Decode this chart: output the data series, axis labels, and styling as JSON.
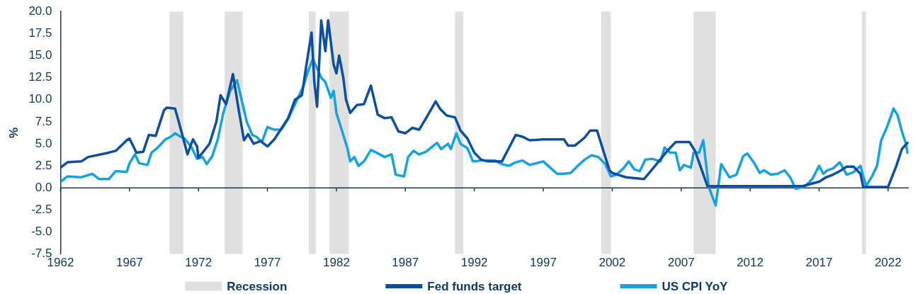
{
  "chart_data": {
    "type": "line",
    "ylabel": "%",
    "xlim": [
      1962,
      2023.5
    ],
    "xticks": [
      1962,
      1967,
      1972,
      1977,
      1982,
      1987,
      1992,
      1997,
      2002,
      2007,
      2012,
      2017,
      2022
    ],
    "ylim": [
      -7.5,
      20
    ],
    "yticks": [
      {
        "value": -7.5,
        "label": "-7.5"
      },
      {
        "value": -5,
        "label": "-5.0"
      },
      {
        "value": -2.5,
        "label": "-2.5"
      },
      {
        "value": 0,
        "label": "0.0"
      },
      {
        "value": 2.5,
        "label": "2.5"
      },
      {
        "value": 5,
        "label": "5.0"
      },
      {
        "value": 7.5,
        "label": "7.5"
      },
      {
        "value": 10,
        "label": "10.0"
      },
      {
        "value": 12.5,
        "label": "12.5"
      },
      {
        "value": 15,
        "label": "15.0"
      },
      {
        "value": 17.5,
        "label": "17.5"
      },
      {
        "value": 20,
        "label": "20.0"
      }
    ],
    "grid": false,
    "legend": "bottom",
    "line_style": "solid",
    "marker": "none",
    "bands": [
      {
        "axis": "x",
        "from": 1969.9,
        "to": 1970.9,
        "label": "Recession",
        "color": "#e0e0e0"
      },
      {
        "axis": "x",
        "from": 1973.9,
        "to": 1975.2,
        "color": "#e0e0e0"
      },
      {
        "axis": "x",
        "from": 1980.0,
        "to": 1980.5,
        "color": "#e0e0e0"
      },
      {
        "axis": "x",
        "from": 1981.5,
        "to": 1982.9,
        "color": "#e0e0e0"
      },
      {
        "axis": "x",
        "from": 1990.6,
        "to": 1991.2,
        "color": "#e0e0e0"
      },
      {
        "axis": "x",
        "from": 2001.2,
        "to": 2001.9,
        "color": "#e0e0e0"
      },
      {
        "axis": "x",
        "from": 2007.9,
        "to": 2009.5,
        "color": "#e0e0e0"
      },
      {
        "axis": "x",
        "from": 2020.1,
        "to": 2020.4,
        "color": "#e0e0e0"
      }
    ],
    "series": [
      {
        "name": "Fed funds target",
        "color": "#0b4ea2",
        "x": [
          1962.0,
          1962.5,
          1963.5,
          1964.0,
          1965.5,
          1966.0,
          1966.8,
          1967.0,
          1967.5,
          1968.0,
          1968.4,
          1968.9,
          1969.5,
          1969.7,
          1970.3,
          1970.5,
          1971.0,
          1971.2,
          1971.6,
          1971.9,
          1972.0,
          1972.8,
          1973.3,
          1973.6,
          1974.0,
          1974.5,
          1974.9,
          1975.3,
          1975.6,
          1976.0,
          1976.5,
          1977.0,
          1977.5,
          1978.0,
          1978.5,
          1979.0,
          1979.5,
          1979.8,
          1980.2,
          1980.4,
          1980.6,
          1980.9,
          1981.2,
          1981.4,
          1981.8,
          1982.0,
          1982.2,
          1982.5,
          1982.7,
          1983.0,
          1983.5,
          1984.0,
          1984.5,
          1985.0,
          1985.5,
          1986.0,
          1986.5,
          1987.0,
          1987.5,
          1988.0,
          1988.5,
          1989.2,
          1989.5,
          1990.0,
          1990.6,
          1991.0,
          1991.5,
          1992.0,
          1992.5,
          1993.0,
          1994.0,
          1994.5,
          1995.0,
          1995.5,
          1996.0,
          1997.0,
          1998.5,
          1998.8,
          1999.3,
          2000.0,
          2000.4,
          2000.9,
          2001.3,
          2001.8,
          2002.0,
          2003.0,
          2004.3,
          2005.0,
          2006.0,
          2006.6,
          2007.6,
          2008.0,
          2008.5,
          2008.9,
          2015.8,
          2016.5,
          2017.0,
          2017.5,
          2018.0,
          2018.5,
          2019.0,
          2019.5,
          2020.0,
          2020.2,
          2022.0,
          2022.6,
          2023.0,
          2023.4
        ],
        "values": [
          2.3,
          2.9,
          3.0,
          3.5,
          4.0,
          4.2,
          5.4,
          5.6,
          4.0,
          4.1,
          6.0,
          5.9,
          8.8,
          9.1,
          9.0,
          7.9,
          5.0,
          3.8,
          5.5,
          4.7,
          3.4,
          5.0,
          7.5,
          10.5,
          9.5,
          12.9,
          9.0,
          5.4,
          6.1,
          5.0,
          5.3,
          4.7,
          5.5,
          6.7,
          7.9,
          10.0,
          10.5,
          13.7,
          17.6,
          12.0,
          9.2,
          19.0,
          15.5,
          19.0,
          14.0,
          13.0,
          15.0,
          12.5,
          10.0,
          8.5,
          9.4,
          9.5,
          11.6,
          8.3,
          7.9,
          8.0,
          6.4,
          6.2,
          6.8,
          6.6,
          7.9,
          9.8,
          9.0,
          8.2,
          8.0,
          6.5,
          5.6,
          4.0,
          3.2,
          3.0,
          3.0,
          4.5,
          6.0,
          5.8,
          5.4,
          5.5,
          5.5,
          4.8,
          4.8,
          5.7,
          6.5,
          6.5,
          4.5,
          2.0,
          1.7,
          1.2,
          1.0,
          2.3,
          4.2,
          5.2,
          5.2,
          4.2,
          2.0,
          0.2,
          0.2,
          0.5,
          0.7,
          1.2,
          1.5,
          1.9,
          2.4,
          2.4,
          1.6,
          0.1,
          0.1,
          2.5,
          4.4,
          5.1
        ]
      },
      {
        "name": "US CPI YoY",
        "color": "#14a3e0",
        "x": [
          1962.0,
          1962.5,
          1963.5,
          1964.3,
          1964.8,
          1965.5,
          1966.0,
          1966.8,
          1967.0,
          1967.4,
          1967.7,
          1968.3,
          1968.6,
          1969.0,
          1969.6,
          1970.0,
          1970.3,
          1970.7,
          1971.0,
          1971.5,
          1971.9,
          1972.3,
          1972.6,
          1973.0,
          1973.4,
          1973.8,
          1974.3,
          1974.8,
          1975.2,
          1975.5,
          1975.9,
          1976.2,
          1976.6,
          1977.0,
          1977.5,
          1978.0,
          1978.5,
          1979.0,
          1979.6,
          1980.0,
          1980.3,
          1980.9,
          1981.2,
          1981.6,
          1981.8,
          1982.0,
          1982.4,
          1982.8,
          1983.0,
          1983.3,
          1983.6,
          1984.0,
          1984.5,
          1984.9,
          1985.5,
          1986.0,
          1986.3,
          1986.9,
          1987.2,
          1987.6,
          1988.0,
          1988.5,
          1989.3,
          1989.6,
          1990.1,
          1990.3,
          1990.7,
          1991.0,
          1991.5,
          1991.9,
          1992.5,
          1993.5,
          1994.0,
          1994.5,
          1995.0,
          1995.5,
          1996.0,
          1997.0,
          1997.5,
          1998.0,
          1998.5,
          1999.0,
          1999.5,
          2000.0,
          2000.5,
          2001.0,
          2001.5,
          2001.9,
          2002.3,
          2002.8,
          2003.2,
          2003.6,
          2004.0,
          2004.4,
          2004.9,
          2005.5,
          2005.8,
          2006.2,
          2006.6,
          2006.9,
          2007.2,
          2007.7,
          2007.9,
          2008.3,
          2008.6,
          2009.0,
          2009.5,
          2009.9,
          2010.5,
          2011.0,
          2011.5,
          2011.8,
          2012.3,
          2012.7,
          2013.0,
          2013.5,
          2014.0,
          2014.5,
          2014.9,
          2015.3,
          2016.0,
          2016.5,
          2017.0,
          2017.3,
          2017.6,
          2018.0,
          2018.5,
          2019.0,
          2019.5,
          2020.0,
          2020.4,
          2020.8,
          2021.2,
          2021.5,
          2021.9,
          2022.4,
          2022.7,
          2023.0,
          2023.3,
          2023.4
        ],
        "values": [
          0.7,
          1.3,
          1.2,
          1.6,
          1.0,
          1.0,
          1.9,
          1.8,
          2.8,
          3.8,
          2.8,
          2.6,
          4.0,
          4.5,
          5.5,
          5.8,
          6.2,
          5.8,
          5.6,
          4.6,
          3.3,
          3.5,
          2.7,
          3.6,
          5.5,
          8.5,
          11.0,
          12.2,
          9.5,
          7.5,
          6.0,
          5.8,
          5.2,
          6.9,
          6.6,
          6.6,
          7.8,
          9.5,
          11.5,
          13.5,
          14.6,
          12.5,
          12.0,
          10.2,
          11.0,
          8.5,
          6.5,
          4.5,
          3.0,
          3.5,
          2.5,
          3.0,
          4.3,
          4.0,
          3.5,
          3.8,
          1.5,
          1.3,
          3.5,
          4.2,
          3.8,
          4.1,
          5.1,
          4.4,
          5.0,
          4.4,
          6.2,
          5.0,
          4.5,
          3.0,
          3.1,
          3.1,
          2.7,
          2.5,
          2.9,
          3.1,
          2.6,
          3.0,
          2.3,
          1.6,
          1.6,
          1.7,
          2.5,
          3.2,
          3.7,
          3.5,
          2.7,
          1.3,
          1.5,
          2.2,
          3.0,
          2.1,
          1.9,
          3.2,
          3.3,
          3.0,
          4.6,
          4.0,
          4.0,
          2.0,
          2.6,
          2.3,
          4.0,
          4.0,
          5.4,
          0.1,
          -2.0,
          2.7,
          1.2,
          1.5,
          3.6,
          3.9,
          2.8,
          1.7,
          2.0,
          1.5,
          1.6,
          2.0,
          1.2,
          -0.1,
          0.2,
          1.0,
          2.5,
          1.6,
          2.0,
          2.2,
          2.9,
          1.5,
          1.8,
          2.5,
          0.2,
          1.2,
          2.5,
          5.4,
          6.8,
          9.0,
          8.2,
          6.4,
          5.0,
          4.0
        ]
      }
    ]
  }
}
